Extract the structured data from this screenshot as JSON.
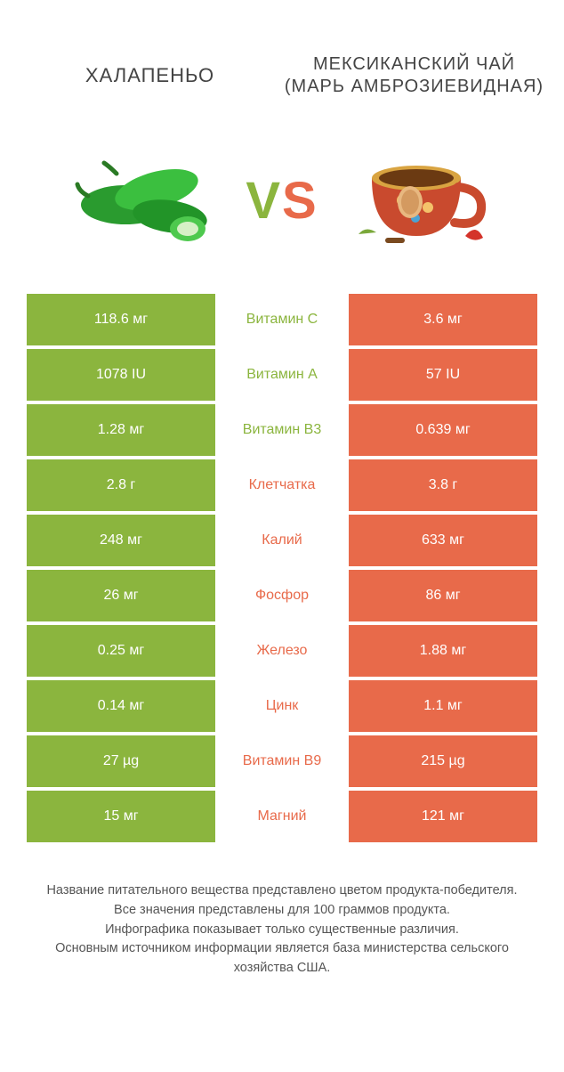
{
  "colors": {
    "left": "#8bb53e",
    "right": "#e86a4a",
    "mid_bg": "#ffffff",
    "text_dark": "#444444",
    "footer_text": "#555555"
  },
  "titles": {
    "left": "ХАЛАПЕНЬО",
    "right": "МЕКСИКАНСКИЙ ЧАЙ (МАРЬ АМБРОЗИЕВИДНАЯ)"
  },
  "vs": {
    "v": "V",
    "s": "S"
  },
  "rows": [
    {
      "left": "118.6 мг",
      "mid": "Витамин C",
      "right": "3.6 мг",
      "winner": "left"
    },
    {
      "left": "1078 IU",
      "mid": "Витамин A",
      "right": "57 IU",
      "winner": "left"
    },
    {
      "left": "1.28 мг",
      "mid": "Витамин B3",
      "right": "0.639 мг",
      "winner": "left"
    },
    {
      "left": "2.8 г",
      "mid": "Клетчатка",
      "right": "3.8 г",
      "winner": "right"
    },
    {
      "left": "248 мг",
      "mid": "Калий",
      "right": "633 мг",
      "winner": "right"
    },
    {
      "left": "26 мг",
      "mid": "Фосфор",
      "right": "86 мг",
      "winner": "right"
    },
    {
      "left": "0.25 мг",
      "mid": "Железо",
      "right": "1.88 мг",
      "winner": "right"
    },
    {
      "left": "0.14 мг",
      "mid": "Цинк",
      "right": "1.1 мг",
      "winner": "right"
    },
    {
      "left": "27 µg",
      "mid": "Витамин B9",
      "right": "215 µg",
      "winner": "right"
    },
    {
      "left": "15 мг",
      "mid": "Магний",
      "right": "121 мг",
      "winner": "right"
    }
  ],
  "footer": {
    "line1": "Название питательного вещества представлено цветом продукта-победителя.",
    "line2": "Все значения представлены для 100 граммов продукта.",
    "line3": "Инфографика показывает только существенные различия.",
    "line4": "Основным источником информации является база министерства сельского хозяйства США."
  }
}
